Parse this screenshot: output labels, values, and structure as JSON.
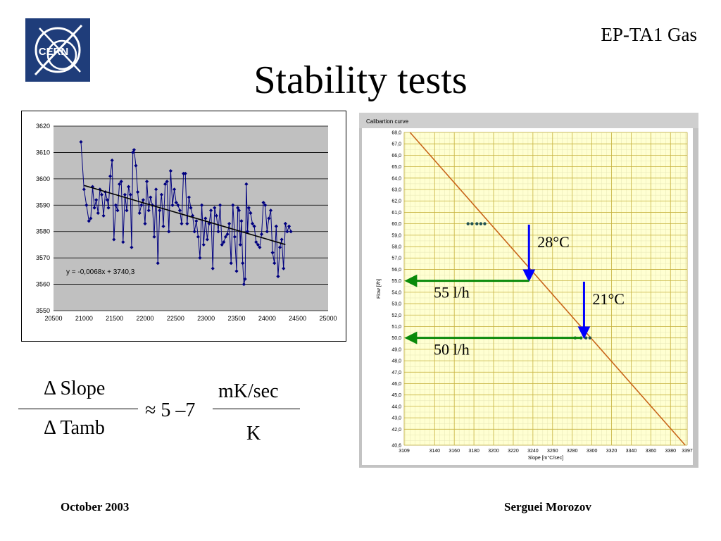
{
  "header": {
    "top_right": "EP-TA1 Gas",
    "title": "Stability tests",
    "logo_text": "CERN"
  },
  "formula": {
    "delta_symbol": "Δ",
    "num_left": "Slope",
    "den_left": "Tamb",
    "approx": "≈ 5 –7",
    "num_right": "mK/sec",
    "den_right": "K"
  },
  "footer": {
    "date": "October 2003",
    "author": "Serguei Morozov"
  },
  "chart_data": [
    {
      "type": "line",
      "title": "",
      "xlabel": "",
      "ylabel": "",
      "xlim": [
        20500,
        25000
      ],
      "ylim": [
        3550,
        3620
      ],
      "x_ticks": [
        "20500",
        "21000",
        "21500",
        "22000",
        "22500",
        "23000",
        "23500",
        "24000",
        "24500",
        "25000"
      ],
      "y_ticks": [
        "3550",
        "3560",
        "3570",
        "3580",
        "3590",
        "3600",
        "3610",
        "3620"
      ],
      "grid": true,
      "background": "#c0c0c0",
      "series_color": "#00007f",
      "trendline": {
        "equation": "y = -0,0068x + 3740,3",
        "slope": -0.0068,
        "intercept": 3740.3,
        "x_range": [
          21000,
          24300
        ]
      },
      "x": [
        20950,
        21000,
        21040,
        21080,
        21110,
        21140,
        21170,
        21200,
        21230,
        21260,
        21290,
        21320,
        21350,
        21380,
        21400,
        21430,
        21460,
        21490,
        21520,
        21550,
        21580,
        21610,
        21640,
        21670,
        21700,
        21730,
        21760,
        21780,
        21800,
        21820,
        21850,
        21880,
        21910,
        21940,
        21970,
        22000,
        22030,
        22060,
        22090,
        22120,
        22150,
        22180,
        22210,
        22240,
        22270,
        22300,
        22330,
        22360,
        22390,
        22420,
        22450,
        22480,
        22510,
        22540,
        22570,
        22600,
        22630,
        22660,
        22690,
        22720,
        22750,
        22780,
        22810,
        22840,
        22870,
        22900,
        22930,
        22960,
        22990,
        23020,
        23050,
        23080,
        23110,
        23140,
        23170,
        23200,
        23230,
        23260,
        23290,
        23320,
        23350,
        23380,
        23410,
        23440,
        23470,
        23500,
        23520,
        23540,
        23560,
        23580,
        23600,
        23620,
        23640,
        23660,
        23680,
        23700,
        23730,
        23760,
        23790,
        23820,
        23850,
        23880,
        23910,
        23940,
        23970,
        24000,
        24030,
        24060,
        24090,
        24120,
        24150,
        24180,
        24210,
        24240,
        24270,
        24300,
        24330,
        24360,
        24390
      ],
      "y": [
        3614,
        3596,
        3590,
        3584,
        3585,
        3597,
        3589,
        3592,
        3587,
        3596,
        3594,
        3586,
        3595,
        3592,
        3589,
        3601,
        3607,
        3577,
        3590,
        3588,
        3598,
        3599,
        3576,
        3594,
        3588,
        3597,
        3594,
        3574,
        3610,
        3611,
        3605,
        3595,
        3587,
        3590,
        3592,
        3583,
        3599,
        3588,
        3593,
        3590,
        3578,
        3596,
        3568,
        3588,
        3594,
        3582,
        3598,
        3599,
        3580,
        3603,
        3590,
        3596,
        3591,
        3590,
        3588,
        3583,
        3602,
        3602,
        3583,
        3593,
        3589,
        3586,
        3580,
        3584,
        3578,
        3570,
        3590,
        3575,
        3585,
        3577,
        3583,
        3588,
        3566,
        3589,
        3586,
        3580,
        3590,
        3575,
        3576,
        3578,
        3579,
        3583,
        3568,
        3590,
        3578,
        3565,
        3589,
        3588,
        3575,
        3584,
        3568,
        3560,
        3562,
        3598,
        3580,
        3589,
        3587,
        3583,
        3582,
        3576,
        3575,
        3574,
        3579,
        3591,
        3590,
        3580,
        3585,
        3588,
        3572,
        3568,
        3582,
        3563,
        3574,
        3577,
        3566,
        3583,
        3580,
        3582,
        3580
      ]
    },
    {
      "type": "line",
      "title": "Calibartion curve",
      "xlabel": "Slope [m°C/sec]",
      "ylabel": "Flow [l/h]",
      "xlim": [
        3109,
        3397
      ],
      "ylim": [
        40.6,
        68.0
      ],
      "x_ticks": [
        "3109",
        "3140",
        "3160",
        "3180",
        "3200",
        "3220",
        "3240",
        "3260",
        "3280",
        "3300",
        "3320",
        "3340",
        "3360",
        "3380",
        "3397"
      ],
      "y_ticks": [
        "40,6",
        "42,0",
        "43,0",
        "44,0",
        "45,0",
        "46,0",
        "47,0",
        "48,0",
        "49,0",
        "50,0",
        "51,0",
        "52,0",
        "53,0",
        "54,0",
        "55,0",
        "56,0",
        "57,0",
        "58,0",
        "59,0",
        "60,0",
        "61,0",
        "62,0",
        "63,0",
        "64,0",
        "65,0",
        "66,0",
        "67,0",
        "68,0"
      ],
      "grid": true,
      "series": [
        {
          "name": "",
          "type": "line",
          "color": "#c86418",
          "x": [
            3115,
            3395
          ],
          "y": [
            68.0,
            40.6
          ]
        },
        {
          "name": "",
          "type": "scatter",
          "color": "#1f5050",
          "x": [
            3174,
            3178,
            3183,
            3187,
            3191
          ],
          "y": [
            60.0,
            60.0,
            60.0,
            60.0,
            60.0
          ]
        },
        {
          "name": "",
          "type": "scatter",
          "color": "#1f5050",
          "x": [
            3283,
            3289,
            3294,
            3298
          ],
          "y": [
            50.0,
            50.0,
            50.0,
            50.0
          ]
        }
      ],
      "annotations": [
        {
          "text": "28°C",
          "arrow_color": "#0000ff",
          "x": 3236,
          "y_from": 59.8,
          "y_to": 55.0
        },
        {
          "text": "21°C",
          "arrow_color": "#0000ff",
          "x": 3292,
          "y_from": 54.8,
          "y_to": 50.0
        },
        {
          "text": "55 l/h",
          "arrow_color": "#0a8a0a",
          "from_x": 3236,
          "to_x": 3109,
          "y": 55.0
        },
        {
          "text": "50 l/h",
          "arrow_color": "#0a8a0a",
          "from_x": 3290,
          "to_x": 3109,
          "y": 50.0
        }
      ]
    }
  ]
}
